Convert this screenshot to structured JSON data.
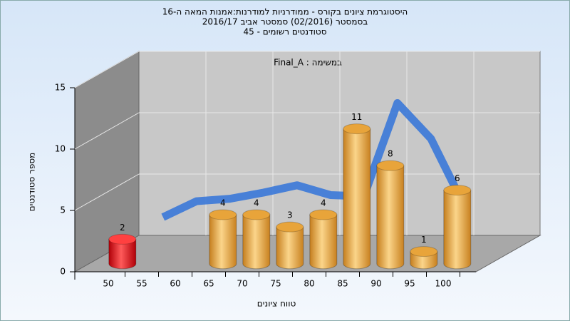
{
  "chart_data": {
    "type": "bar3d",
    "title": [
      "היסטוגרמת ציונים בקורס - ממודרניות למודרנות:אמנות המאה ה-16",
      "בסמסטר  (02/2016)  סמסטר אביב 2016/17",
      "סטודנטים רשומים - 45"
    ],
    "legend": "במשימה : Final_A",
    "x_label": "טווח ציונים",
    "y_label": "מספר סטודנטים",
    "categories": [
      "50",
      "55",
      "60",
      "65",
      "70",
      "75",
      "80",
      "85",
      "90",
      "95",
      "100"
    ],
    "values": [
      2,
      0,
      0,
      4,
      4,
      3,
      4,
      11,
      8,
      1,
      6
    ],
    "colors": [
      "#e0141a",
      "#e8a43a",
      "#e8a43a",
      "#e8a43a",
      "#e8a43a",
      "#e8a43a",
      "#e8a43a",
      "#e8a43a",
      "#e8a43a",
      "#e8a43a",
      "#e8a43a"
    ],
    "curve": {
      "color": "#3a78d8",
      "values": [
        null,
        3.8,
        5.1,
        5.3,
        5.8,
        6.4,
        5.6,
        5.5,
        13.1,
        10.2,
        4.7
      ]
    },
    "ylim": [
      0,
      15
    ],
    "yticks": [
      0,
      5,
      10,
      15
    ],
    "grid": true
  }
}
